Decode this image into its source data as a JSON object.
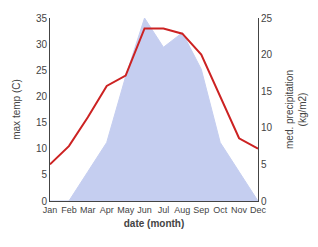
{
  "chart_data": {
    "type": "line",
    "categories": [
      "Jan",
      "Feb",
      "Mar",
      "Apr",
      "May",
      "Jun",
      "Jul",
      "Aug",
      "Sep",
      "Oct",
      "Nov",
      "Dec"
    ],
    "series": [
      {
        "type": "area",
        "color": "#c5cef0",
        "axis": "y2",
        "values": [
          0,
          0,
          4,
          8,
          17,
          25,
          21,
          23,
          18,
          8,
          4,
          0
        ]
      },
      {
        "type": "line",
        "color": "#cc2222",
        "values": [
          7,
          10.5,
          16,
          22,
          24,
          33,
          33,
          32,
          28,
          20,
          12,
          10
        ]
      }
    ],
    "xlabel": "date (month)",
    "ylabel": "max temp (C)",
    "y2label": "med. precipitation\n(kg/m2)",
    "ylim": [
      0,
      35
    ],
    "yticks": [
      0,
      5,
      10,
      15,
      20,
      25,
      30,
      35
    ],
    "y2lim": [
      0,
      25
    ],
    "y2ticks": [
      0,
      5,
      10,
      15,
      20,
      25
    ],
    "grid": false
  }
}
